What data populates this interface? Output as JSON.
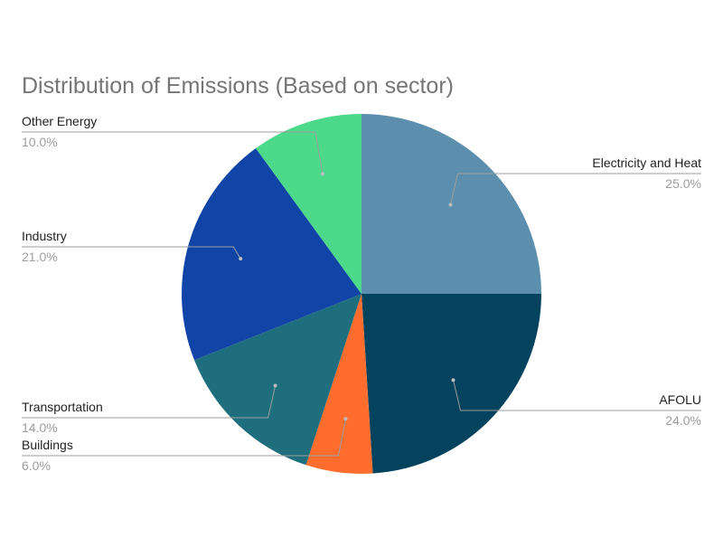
{
  "chart_data": {
    "type": "pie",
    "title": "Distribution of Emissions (Based on sector)",
    "legend": "none",
    "start_angle_deg": 0,
    "direction": "clockwise",
    "slices": [
      {
        "label": "Electricity and Heat",
        "value": 25.0,
        "value_label": "25.0%",
        "color": "#5b8fad",
        "side": "right"
      },
      {
        "label": "AFOLU",
        "value": 24.0,
        "value_label": "24.0%",
        "color": "#03435e",
        "side": "right"
      },
      {
        "label": "Buildings",
        "value": 6.0,
        "value_label": "6.0%",
        "color": "#ff6d2e",
        "side": "left"
      },
      {
        "label": "Transportation",
        "value": 14.0,
        "value_label": "14.0%",
        "color": "#1f6e7d",
        "side": "left"
      },
      {
        "label": "Industry",
        "value": 21.0,
        "value_label": "21.0%",
        "color": "#1044a6",
        "side": "left"
      },
      {
        "label": "Other Energy",
        "value": 10.0,
        "value_label": "10.0%",
        "color": "#4cd989",
        "side": "left"
      }
    ]
  }
}
